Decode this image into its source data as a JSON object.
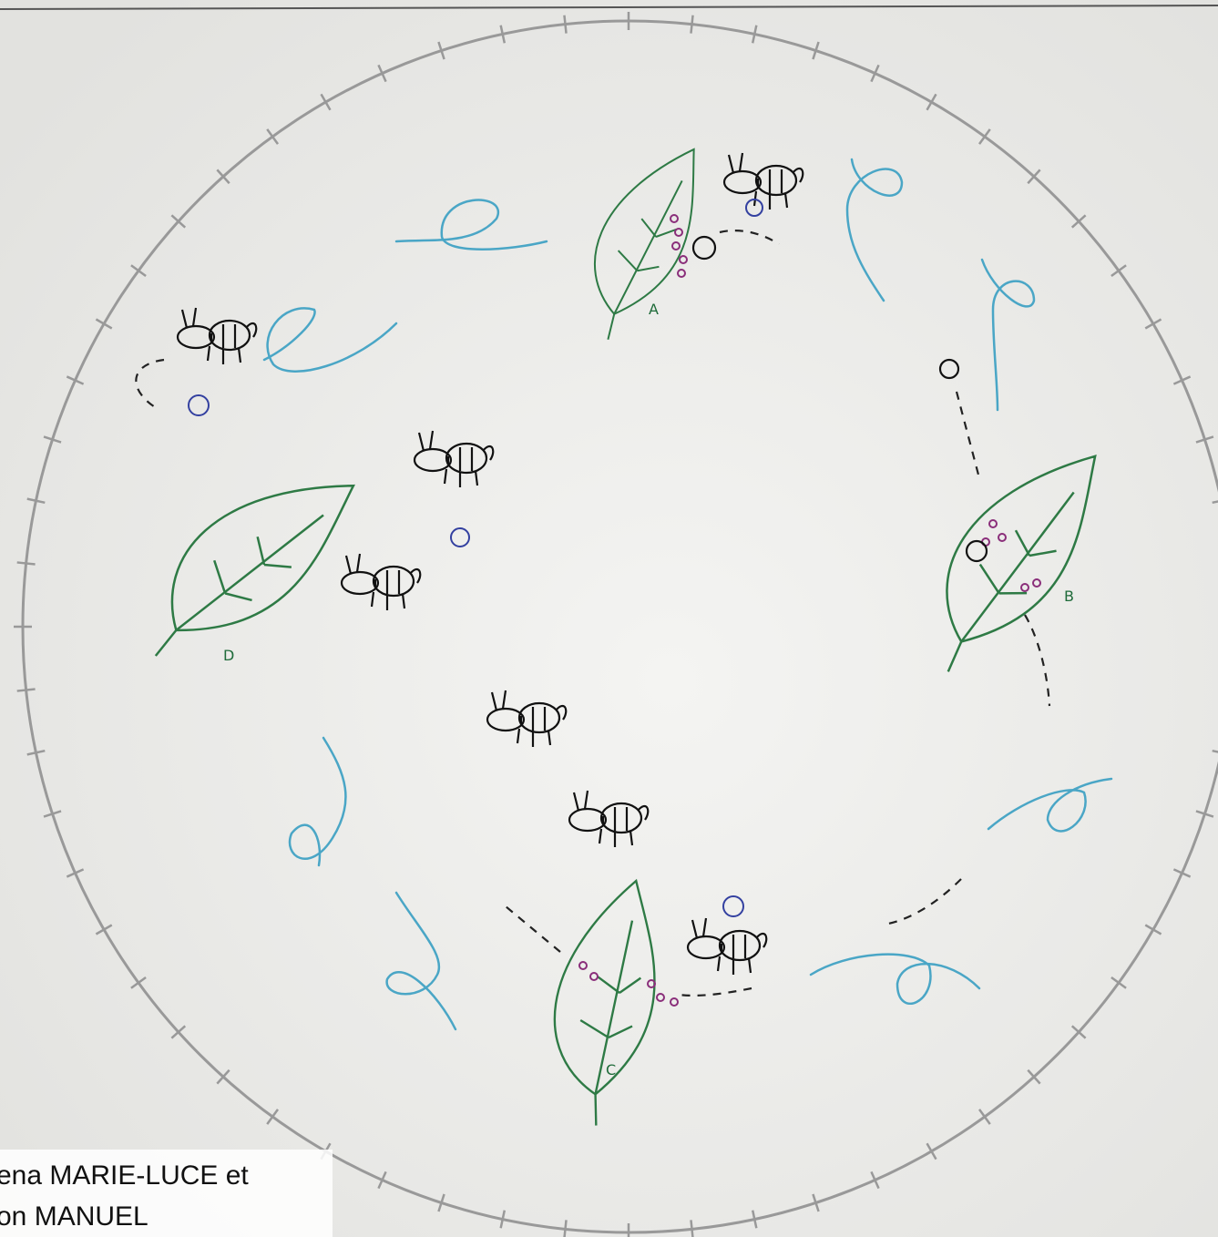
{
  "leaves": [
    {
      "label": "A"
    },
    {
      "label": "B"
    },
    {
      "label": "C"
    },
    {
      "label": "D"
    }
  ],
  "caption": {
    "line1": "ena MARIE-LUCE et",
    "line2": "on MANUEL"
  }
}
